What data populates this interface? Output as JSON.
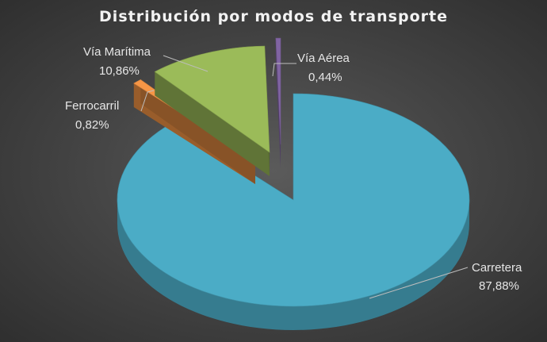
{
  "chart_data": {
    "type": "pie",
    "title": "Distribución por modos de transporte",
    "slices": [
      {
        "label": "Carretera",
        "value": 87.88,
        "value_label": "87,88%",
        "color": "#4bacc6"
      },
      {
        "label": "Ferrocarril",
        "value": 0.82,
        "value_label": "0,82%",
        "color": "#f79646"
      },
      {
        "label": "Vía Marítima",
        "value": 10.86,
        "value_label": "10,86%",
        "color": "#9bbb59"
      },
      {
        "label": "Vía Aérea",
        "value": 0.44,
        "value_label": "0,44%",
        "color": "#8064a2"
      }
    ],
    "style": "3d-exploded",
    "legend": "none"
  }
}
